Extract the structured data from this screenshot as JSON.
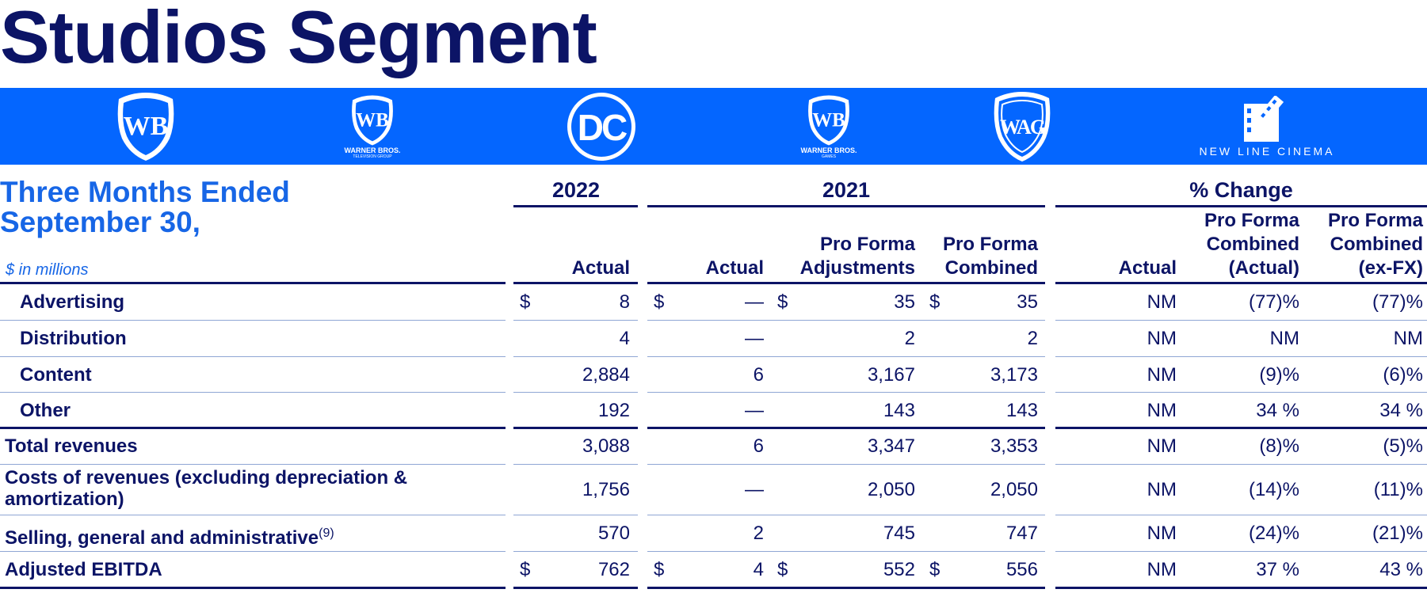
{
  "title": "Studios Segment",
  "logos": [
    {
      "name": "wb-shield-icon",
      "text": "WB",
      "sub": ""
    },
    {
      "name": "wb-television-group-icon",
      "text": "WB",
      "sub": "WARNER BROS.",
      "sub2": "TELEVISION GROUP"
    },
    {
      "name": "dc-icon",
      "text": "DC",
      "sub": ""
    },
    {
      "name": "wb-games-icon",
      "text": "WB",
      "sub": "WARNER BROS.",
      "sub2": "GAMES"
    },
    {
      "name": "wb-animation-icon",
      "text": "WAG",
      "sub": ""
    },
    {
      "name": "new-line-cinema-icon",
      "text": "",
      "sub": "NEW LINE CINEMA"
    }
  ],
  "header": {
    "period_line1": "Three Months Ended",
    "period_line2": "September 30,",
    "units": "$ in millions",
    "group_2022": "2022",
    "group_2021": "2021",
    "group_change": "% Change",
    "columns": [
      {
        "line1": "",
        "line2": "",
        "line3": "Actual"
      },
      {
        "line1": "",
        "line2": "",
        "line3": "Actual"
      },
      {
        "line1": "",
        "line2": "Pro Forma",
        "line3": "Adjustments"
      },
      {
        "line1": "",
        "line2": "Pro Forma",
        "line3": "Combined"
      },
      {
        "line1": "",
        "line2": "",
        "line3": "Actual"
      },
      {
        "line1": "Pro Forma",
        "line2": "Combined",
        "line3": "(Actual)"
      },
      {
        "line1": "Pro Forma",
        "line2": "Combined",
        "line3": "(ex-FX)"
      }
    ]
  },
  "rows": [
    {
      "label": "Advertising",
      "sup": "",
      "label2": "",
      "indent": true,
      "dollar": true,
      "values": [
        "8",
        "—",
        "35",
        "35",
        "NM",
        "(77)%",
        "(77)%"
      ]
    },
    {
      "label": "Distribution",
      "sup": "",
      "label2": "",
      "indent": true,
      "dollar": false,
      "values": [
        "4",
        "—",
        "2",
        "2",
        "NM",
        "NM",
        "NM"
      ]
    },
    {
      "label": "Content",
      "sup": "",
      "label2": "",
      "indent": true,
      "dollar": false,
      "values": [
        "2,884",
        "6",
        "3,167",
        "3,173",
        "NM",
        "(9)%",
        "(6)%"
      ]
    },
    {
      "label": "Other",
      "sup": "",
      "label2": "",
      "indent": true,
      "dollar": false,
      "values": [
        "192",
        "—",
        "143",
        "143",
        "NM",
        "34 %",
        "34 %"
      ]
    },
    {
      "label": "Total revenues",
      "sup": "",
      "label2": "",
      "indent": false,
      "dollar": false,
      "values": [
        "3,088",
        "6",
        "3,347",
        "3,353",
        "NM",
        "(8)%",
        "(5)%"
      ]
    },
    {
      "label": "Costs of revenues (excluding depreciation &",
      "sup": "",
      "label2": "amortization)",
      "indent": false,
      "dollar": false,
      "values": [
        "1,756",
        "—",
        "2,050",
        "2,050",
        "NM",
        "(14)%",
        "(11)%"
      ]
    },
    {
      "label": "Selling, general and administrative",
      "sup": "(9)",
      "label2": "",
      "indent": false,
      "dollar": false,
      "values": [
        "570",
        "2",
        "745",
        "747",
        "NM",
        "(24)%",
        "(21)%"
      ]
    },
    {
      "label": "Adjusted EBITDA",
      "sup": "",
      "label2": "",
      "indent": false,
      "dollar": true,
      "values": [
        "762",
        "4",
        "552",
        "556",
        "NM",
        "37 %",
        "43 %"
      ]
    }
  ],
  "currency_symbol": "$",
  "colors": {
    "navy": "#0c1466",
    "band": "#0466ff",
    "accent": "#1766e6"
  }
}
